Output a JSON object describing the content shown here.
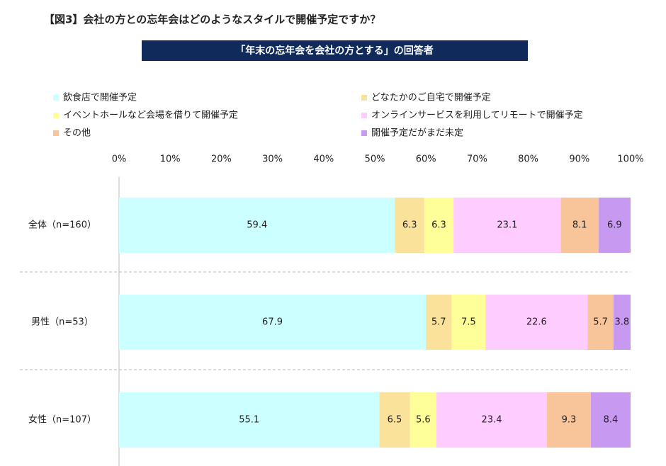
{
  "chart_data": {
    "type": "bar100",
    "title": "【図3】会社の方との忘年会はどのようなスタイルで開催予定ですか？",
    "subtitle": "「年末の忘年会を会社の方とする」の回答者",
    "categories": [
      "全体（n=160）",
      "男性（n=53）",
      "女性（n=107）"
    ],
    "series": [
      {
        "name": "飲食店で開催予定",
        "color": "#ccffff",
        "values": [
          59.4,
          67.9,
          55.1
        ]
      },
      {
        "name": "どなたかのご自宅で開催予定",
        "color": "#fbe29a",
        "values": [
          6.3,
          5.7,
          6.5
        ]
      },
      {
        "name": "イベントホールなど会場を借りて開催予定",
        "color": "#ffff99",
        "values": [
          6.3,
          7.5,
          5.6
        ]
      },
      {
        "name": "オンラインサービスを利用してリモートで開催予定",
        "color": "#ffccff",
        "values": [
          23.1,
          22.6,
          23.4
        ]
      },
      {
        "name": "その他",
        "color": "#f8c59b",
        "values": [
          8.1,
          5.7,
          9.3
        ]
      },
      {
        "name": "開催予定だがまだ未定",
        "color": "#c899f0",
        "values": [
          6.9,
          3.8,
          8.4
        ]
      }
    ],
    "xlim": [
      0,
      100
    ],
    "xticks": [
      {
        "value": 0,
        "label": "0%"
      },
      {
        "value": 10,
        "label": "10%"
      },
      {
        "value": 20,
        "label": "20%"
      },
      {
        "value": 30,
        "label": "30%"
      },
      {
        "value": 40,
        "label": "40%"
      },
      {
        "value": 50,
        "label": "50%"
      },
      {
        "value": 60,
        "label": "60%"
      },
      {
        "value": 70,
        "label": "70%"
      },
      {
        "value": 80,
        "label": "80%"
      },
      {
        "value": 90,
        "label": "90%"
      },
      {
        "value": 100,
        "label": "100%"
      }
    ]
  }
}
